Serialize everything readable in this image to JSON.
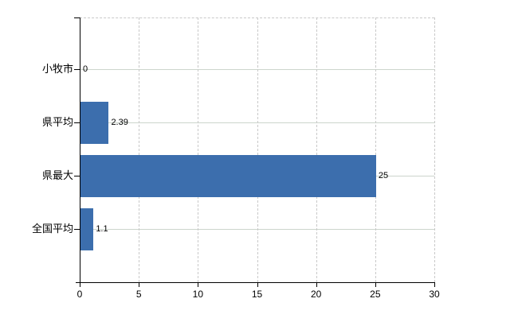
{
  "chart_data": {
    "type": "bar",
    "orientation": "horizontal",
    "title": "",
    "xlabel": "",
    "ylabel": "",
    "categories": [
      "小牧市",
      "県平均",
      "県最大",
      "全国平均"
    ],
    "values": [
      0,
      2.39,
      25,
      1.1
    ],
    "value_labels": [
      "0",
      "2.39",
      "25",
      "1.1"
    ],
    "xlim": [
      0,
      30
    ],
    "xticks": [
      0,
      5,
      10,
      15,
      20,
      25,
      30
    ],
    "xtick_labels": [
      "0",
      "5",
      "10",
      "15",
      "20",
      "25",
      "30"
    ],
    "grid": "both",
    "legend": "none",
    "colors": {
      "bar": "#3c6ead",
      "axis": "#000000",
      "vertical_grid": "#c9c9c9",
      "horizontal_grid": "#ccd5cc",
      "text": "#000000",
      "background": "#ffffff"
    }
  }
}
